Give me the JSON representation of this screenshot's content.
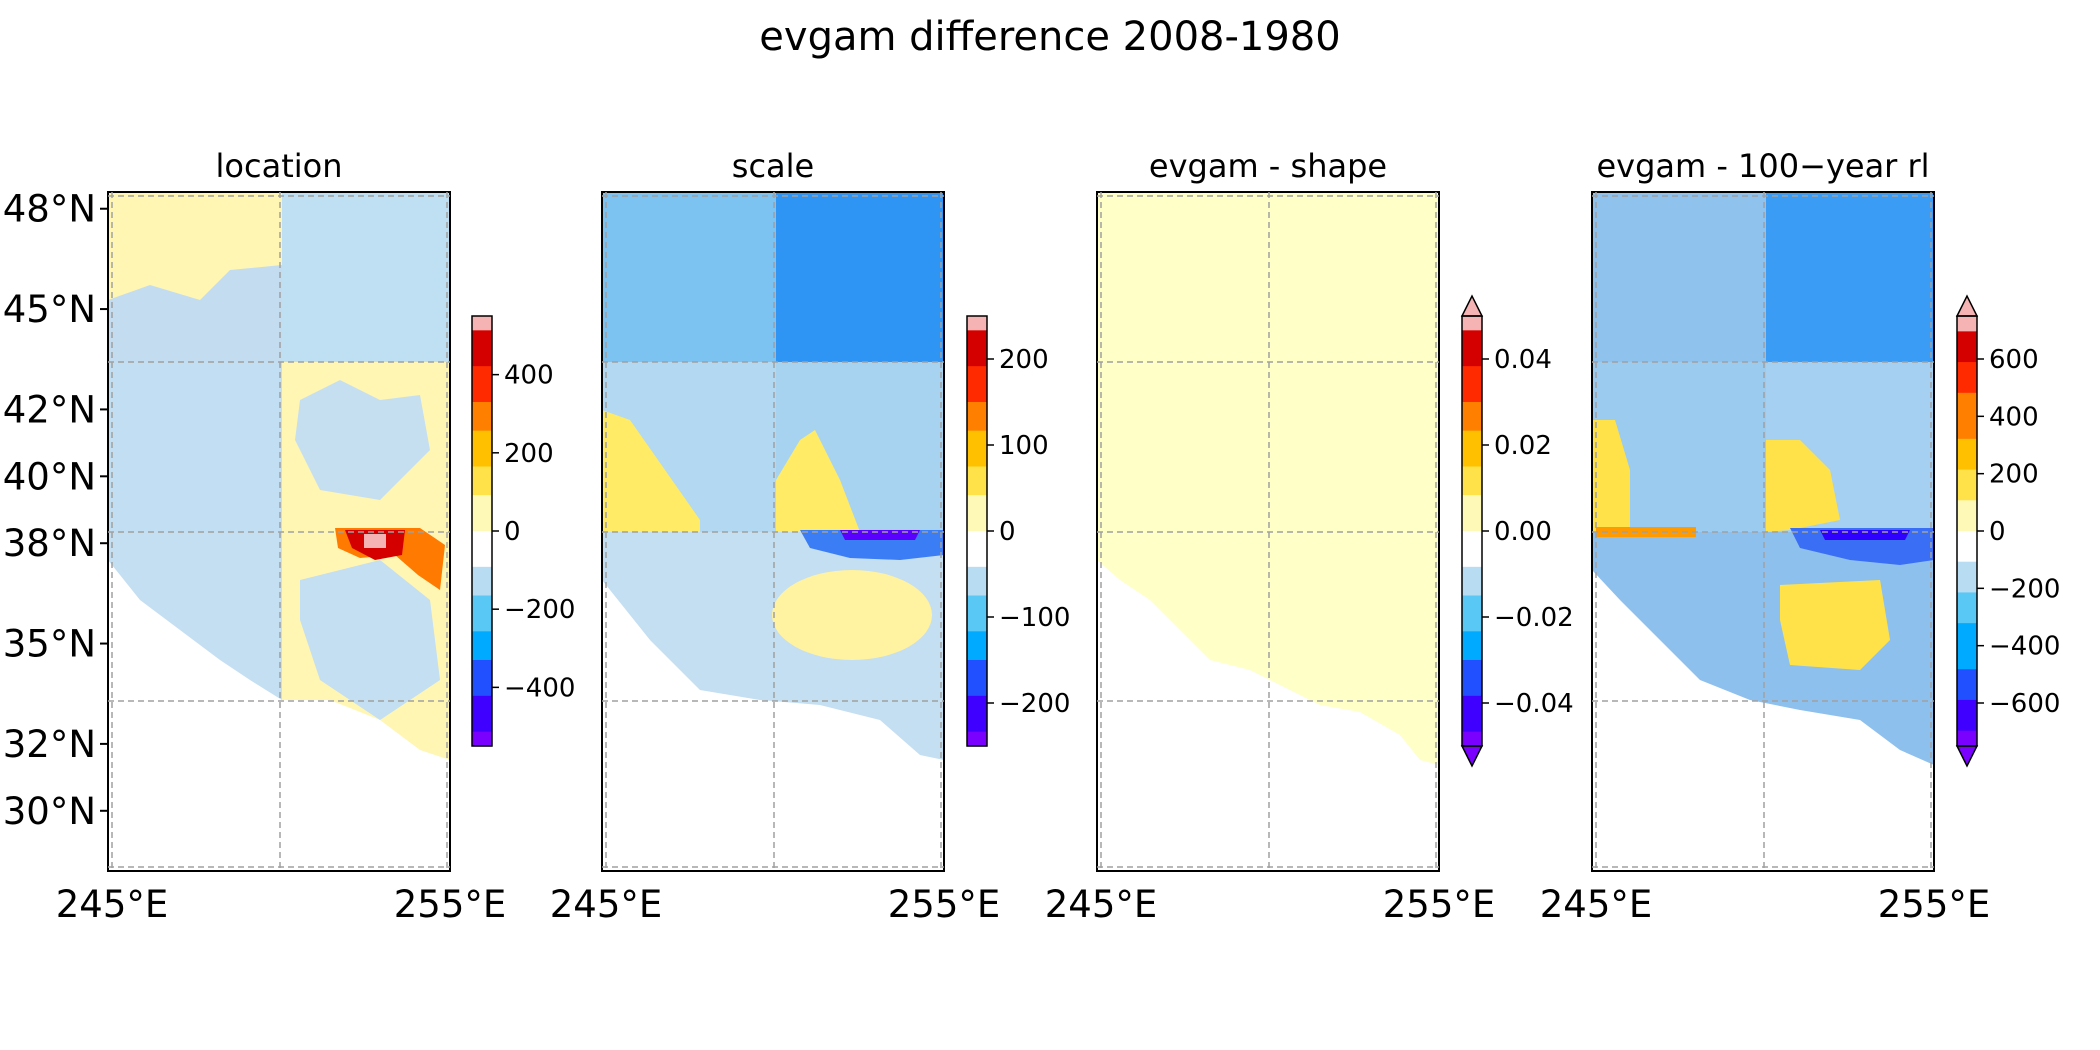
{
  "figure": {
    "title": "evgam difference 2008-1980"
  },
  "colors": {
    "diverging": [
      "#7a00ff",
      "#3f00ff",
      "#2050ff",
      "#00aaff",
      "#5ac8f5",
      "#b8dcf2",
      "#ffffff",
      "#fff9b8",
      "#ffe24a",
      "#ffc000",
      "#ff8000",
      "#ff2a00",
      "#d40000",
      "#f6b3b3"
    ],
    "map_blue_light": "#bddff2",
    "map_yellow_light": "#fff6b3",
    "shape_fill": "#ffffc8"
  },
  "chart_data": [
    {
      "type": "heatmap",
      "title": "location",
      "xlim": [
        245,
        255
      ],
      "ylim": [
        28.2,
        48.5
      ],
      "xticks": [
        "245°E",
        "255°E"
      ],
      "yticks": [
        "48°N",
        "45°N",
        "42°N",
        "40°N",
        "38°N",
        "35°N",
        "32°N",
        "30°N"
      ],
      "ytick_values": [
        48,
        45,
        42,
        40,
        38,
        35,
        32,
        30
      ],
      "gridlines_x": [
        245.2,
        250,
        255
      ],
      "gridlines_y": [
        48.1,
        43.1,
        38.1,
        33.1,
        28.3
      ],
      "colorbar": {
        "range": [
          -550,
          550
        ],
        "ticks": [
          400,
          200,
          0,
          -200,
          -400
        ],
        "tick_labels": [
          "400",
          "200",
          "0",
          "−200",
          "−400"
        ],
        "extend": "neither"
      }
    },
    {
      "type": "heatmap",
      "title": "scale",
      "xlim": [
        245,
        255
      ],
      "ylim": [
        28.2,
        48.5
      ],
      "xticks": [
        "245°E",
        "255°E"
      ],
      "colorbar": {
        "range": [
          -250,
          250
        ],
        "ticks": [
          200,
          100,
          0,
          -100,
          -200
        ],
        "tick_labels": [
          "200",
          "100",
          "0",
          "−100",
          "−200"
        ],
        "extend": "neither"
      }
    },
    {
      "type": "heatmap",
      "title": "evgam - shape",
      "xlim": [
        245,
        255
      ],
      "ylim": [
        28.2,
        48.5
      ],
      "xticks": [
        "245°E",
        "255°E"
      ],
      "colorbar": {
        "range": [
          -0.05,
          0.05
        ],
        "ticks": [
          0.04,
          0.02,
          0.0,
          -0.02,
          -0.04
        ],
        "tick_labels": [
          "0.04",
          "0.02",
          "0.00",
          "−0.02",
          "−0.04"
        ],
        "extend": "both"
      }
    },
    {
      "type": "heatmap",
      "title": "evgam - 100−year rl",
      "xlim": [
        245,
        255
      ],
      "ylim": [
        28.2,
        48.5
      ],
      "xticks": [
        "245°E",
        "255°E"
      ],
      "colorbar": {
        "range": [
          -750,
          750
        ],
        "ticks": [
          600,
          400,
          200,
          0,
          -200,
          -400,
          -600
        ],
        "tick_labels": [
          "600",
          "400",
          "200",
          "0",
          "−200",
          "−400",
          "−600"
        ],
        "extend": "both",
        "discrete": true
      }
    }
  ]
}
